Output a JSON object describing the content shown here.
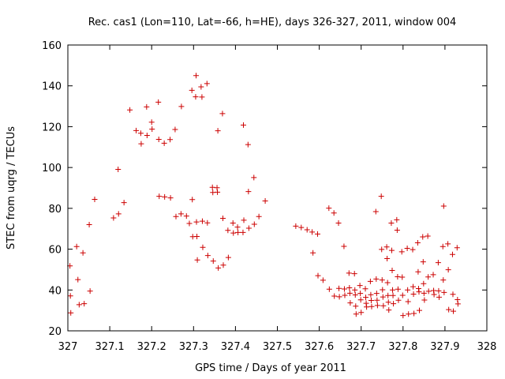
{
  "chart_data": {
    "type": "scatter",
    "title": "Rec. cas1 (Lon=110, Lat=-66, h=HE), days 326-327, 2011, window 004",
    "xlabel": "GPS time / Days of year 2011",
    "ylabel": "STEC from uqrg / TECUs",
    "xlim": [
      327,
      328
    ],
    "ylim": [
      20,
      160
    ],
    "xticks": [
      "327",
      "327.1",
      "327.2",
      "327.3",
      "327.4",
      "327.5",
      "327.6",
      "327.7",
      "327.8",
      "327.9",
      "328"
    ],
    "yticks": [
      "20",
      "40",
      "60",
      "80",
      "100",
      "120",
      "140",
      "160"
    ],
    "grid": false,
    "legend": "none",
    "marker": "plus",
    "color": "#cc0000",
    "points": [
      [
        327.005,
        51.8
      ],
      [
        327.006,
        37.1
      ],
      [
        327.007,
        28.8
      ],
      [
        327.021,
        61.3
      ],
      [
        327.024,
        45.1
      ],
      [
        327.027,
        32.8
      ],
      [
        327.036,
        58.2
      ],
      [
        327.039,
        33.3
      ],
      [
        327.051,
        72.0
      ],
      [
        327.053,
        39.5
      ],
      [
        327.064,
        84.4
      ],
      [
        327.109,
        75.3
      ],
      [
        327.12,
        99.1
      ],
      [
        327.121,
        77.3
      ],
      [
        327.134,
        82.8
      ],
      [
        327.148,
        128.2
      ],
      [
        327.163,
        118.1
      ],
      [
        327.174,
        116.8
      ],
      [
        327.175,
        111.6
      ],
      [
        327.188,
        129.7
      ],
      [
        327.189,
        115.7
      ],
      [
        327.2,
        122.2
      ],
      [
        327.201,
        118.8
      ],
      [
        327.216,
        132.0
      ],
      [
        327.217,
        113.8
      ],
      [
        327.218,
        85.9
      ],
      [
        327.23,
        111.9
      ],
      [
        327.231,
        85.6
      ],
      [
        327.244,
        113.7
      ],
      [
        327.245,
        85.1
      ],
      [
        327.256,
        118.6
      ],
      [
        327.258,
        76.0
      ],
      [
        327.27,
        77.3
      ],
      [
        327.271,
        129.9
      ],
      [
        327.283,
        76.2
      ],
      [
        327.29,
        72.6
      ],
      [
        327.296,
        137.8
      ],
      [
        327.297,
        84.3
      ],
      [
        327.298,
        66.1
      ],
      [
        327.305,
        134.6
      ],
      [
        327.306,
        145.0
      ],
      [
        327.307,
        73.3
      ],
      [
        327.308,
        66.2
      ],
      [
        327.309,
        54.7
      ],
      [
        327.318,
        139.5
      ],
      [
        327.32,
        134.5
      ],
      [
        327.321,
        73.7
      ],
      [
        327.322,
        60.9
      ],
      [
        327.332,
        141.1
      ],
      [
        327.333,
        72.9
      ],
      [
        327.334,
        56.9
      ],
      [
        327.345,
        90.3
      ],
      [
        327.346,
        87.8
      ],
      [
        327.347,
        54.2
      ],
      [
        327.356,
        90.1
      ],
      [
        327.357,
        87.9
      ],
      [
        327.358,
        118.0
      ],
      [
        327.359,
        50.8
      ],
      [
        327.369,
        126.4
      ],
      [
        327.37,
        75.1
      ],
      [
        327.371,
        52.2
      ],
      [
        327.382,
        69.2
      ],
      [
        327.383,
        55.9
      ],
      [
        327.394,
        72.8
      ],
      [
        327.395,
        67.9
      ],
      [
        327.405,
        70.8
      ],
      [
        327.406,
        68.2
      ],
      [
        327.418,
        68.2
      ],
      [
        327.419,
        120.8
      ],
      [
        327.42,
        74.2
      ],
      [
        327.43,
        111.2
      ],
      [
        327.431,
        88.2
      ],
      [
        327.432,
        70.3
      ],
      [
        327.444,
        95.1
      ],
      [
        327.445,
        72.2
      ],
      [
        327.456,
        76.0
      ],
      [
        327.471,
        83.6
      ],
      [
        327.544,
        71.3
      ],
      [
        327.557,
        70.6
      ],
      [
        327.571,
        69.5
      ],
      [
        327.583,
        68.4
      ],
      [
        327.585,
        58.2
      ],
      [
        327.596,
        67.4
      ],
      [
        327.597,
        47.0
      ],
      [
        327.609,
        44.8
      ],
      [
        327.623,
        80.1
      ],
      [
        327.624,
        40.4
      ],
      [
        327.635,
        77.7
      ],
      [
        327.636,
        37.0
      ],
      [
        327.646,
        72.8
      ],
      [
        327.647,
        40.8
      ],
      [
        327.648,
        36.7
      ],
      [
        327.659,
        61.4
      ],
      [
        327.66,
        40.5
      ],
      [
        327.661,
        37.4
      ],
      [
        327.671,
        48.3
      ],
      [
        327.672,
        41.1
      ],
      [
        327.673,
        38.4
      ],
      [
        327.674,
        33.7
      ],
      [
        327.684,
        48.0
      ],
      [
        327.685,
        40.0
      ],
      [
        327.686,
        37.6
      ],
      [
        327.687,
        32.1
      ],
      [
        327.688,
        28.2
      ],
      [
        327.697,
        42.2
      ],
      [
        327.698,
        38.3
      ],
      [
        327.699,
        35.2
      ],
      [
        327.7,
        29.0
      ],
      [
        327.71,
        40.6
      ],
      [
        327.711,
        36.4
      ],
      [
        327.712,
        33.5
      ],
      [
        327.713,
        31.7
      ],
      [
        327.722,
        44.2
      ],
      [
        327.723,
        37.7
      ],
      [
        327.724,
        34.9
      ],
      [
        327.725,
        31.9
      ],
      [
        327.735,
        78.4
      ],
      [
        327.736,
        45.4
      ],
      [
        327.737,
        38.3
      ],
      [
        327.738,
        35.0
      ],
      [
        327.739,
        32.4
      ],
      [
        327.748,
        85.9
      ],
      [
        327.749,
        59.9
      ],
      [
        327.75,
        44.9
      ],
      [
        327.751,
        40.1
      ],
      [
        327.752,
        36.6
      ],
      [
        327.753,
        32.3
      ],
      [
        327.761,
        61.1
      ],
      [
        327.762,
        55.4
      ],
      [
        327.763,
        43.6
      ],
      [
        327.764,
        37.3
      ],
      [
        327.765,
        34.0
      ],
      [
        327.766,
        30.2
      ],
      [
        327.772,
        72.8
      ],
      [
        327.773,
        59.4
      ],
      [
        327.774,
        49.6
      ],
      [
        327.775,
        40.0
      ],
      [
        327.776,
        37.3
      ],
      [
        327.777,
        33.3
      ],
      [
        327.785,
        74.4
      ],
      [
        327.786,
        69.3
      ],
      [
        327.787,
        46.5
      ],
      [
        327.788,
        40.4
      ],
      [
        327.789,
        35.0
      ],
      [
        327.797,
        58.7
      ],
      [
        327.798,
        46.3
      ],
      [
        327.799,
        37.4
      ],
      [
        327.8,
        27.5
      ],
      [
        327.81,
        60.4
      ],
      [
        327.811,
        40.0
      ],
      [
        327.812,
        34.3
      ],
      [
        327.813,
        28.2
      ],
      [
        327.823,
        59.8
      ],
      [
        327.824,
        41.6
      ],
      [
        327.825,
        38.0
      ],
      [
        327.826,
        28.5
      ],
      [
        327.835,
        63.1
      ],
      [
        327.836,
        48.9
      ],
      [
        327.837,
        40.7
      ],
      [
        327.838,
        39.1
      ],
      [
        327.839,
        30.0
      ],
      [
        327.847,
        66.0
      ],
      [
        327.848,
        53.8
      ],
      [
        327.849,
        43.1
      ],
      [
        327.85,
        38.4
      ],
      [
        327.851,
        35.1
      ],
      [
        327.859,
        66.4
      ],
      [
        327.86,
        46.4
      ],
      [
        327.861,
        39.4
      ],
      [
        327.872,
        47.5
      ],
      [
        327.873,
        39.7
      ],
      [
        327.874,
        37.8
      ],
      [
        327.884,
        53.4
      ],
      [
        327.885,
        39.6
      ],
      [
        327.886,
        36.5
      ],
      [
        327.895,
        61.3
      ],
      [
        327.896,
        44.9
      ],
      [
        327.897,
        81.1
      ],
      [
        327.898,
        38.8
      ],
      [
        327.907,
        62.6
      ],
      [
        327.908,
        49.9
      ],
      [
        327.909,
        30.4
      ],
      [
        327.918,
        57.4
      ],
      [
        327.919,
        37.9
      ],
      [
        327.92,
        29.6
      ],
      [
        327.929,
        60.7
      ],
      [
        327.93,
        35.3
      ],
      [
        327.931,
        33.2
      ]
    ]
  }
}
